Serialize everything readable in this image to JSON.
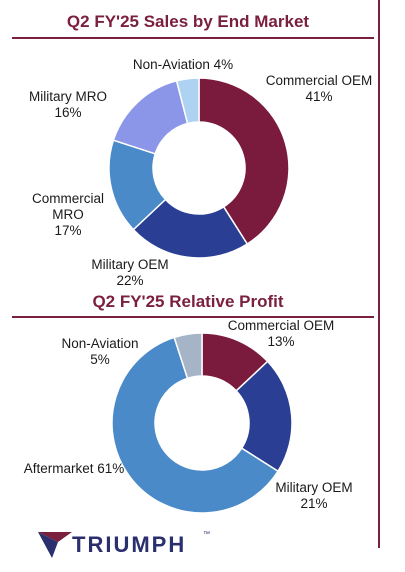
{
  "chart_data": [
    {
      "type": "pie",
      "title": "Q2 FY'25 Sales by End Market",
      "donut": true,
      "slices": [
        {
          "label": "Commercial OEM",
          "value": 41,
          "display": "41%",
          "color": "#7a1a3c"
        },
        {
          "label": "Military OEM",
          "value": 22,
          "display": "22%",
          "color": "#2a3f94"
        },
        {
          "label": "Commercial MRO",
          "value": 17,
          "display": "17%",
          "color": "#4a8ac8"
        },
        {
          "label": "Military MRO",
          "value": 16,
          "display": "16%",
          "color": "#8c96e8"
        },
        {
          "label": "Non-Aviation",
          "value": 4,
          "display": "4%",
          "color": "#aed2f2"
        }
      ]
    },
    {
      "type": "pie",
      "title": "Q2 FY'25 Relative Profit",
      "donut": true,
      "slices": [
        {
          "label": "Commercial OEM",
          "value": 13,
          "display": "13%",
          "color": "#7a1a3c"
        },
        {
          "label": "Military OEM",
          "value": 21,
          "display": "21%",
          "color": "#2a3f94"
        },
        {
          "label": "Aftermarket",
          "value": 61,
          "display": "61%",
          "color": "#4a8ac8"
        },
        {
          "label": "Non-Aviation",
          "value": 5,
          "display": "5%",
          "color": "#a6b4c8"
        }
      ]
    }
  ],
  "labels": {
    "c1": {
      "commercial_oem": "Commercial OEM\n41%",
      "military_oem": "Military OEM\n22%",
      "commercial_mro": "Commercial\nMRO\n17%",
      "military_mro": "Military MRO\n16%",
      "non_aviation": "Non-Aviation 4%"
    },
    "c2": {
      "commercial_oem": "Commercial OEM\n13%",
      "military_oem": "Military OEM\n21%",
      "aftermarket": "Aftermarket 61%",
      "non_aviation": "Non-Aviation\n5%"
    }
  },
  "brand": {
    "name": "TRIUMPH",
    "trademark": "™",
    "logo_colors": [
      "#7a1f3d",
      "#2b2f6e"
    ]
  }
}
